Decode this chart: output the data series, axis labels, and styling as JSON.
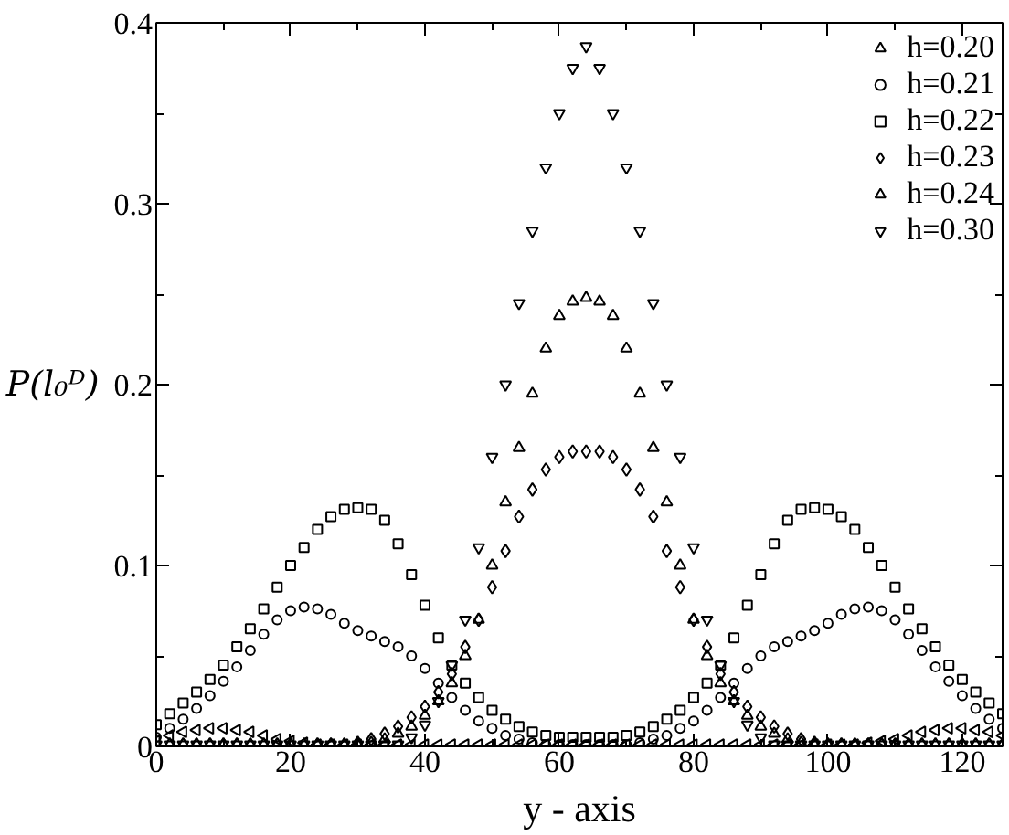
{
  "chart_data": {
    "type": "scatter",
    "xlabel": "y - axis",
    "ylabel": "P(l₀ᴰ)",
    "xlim": [
      0,
      126
    ],
    "ylim": [
      0,
      0.4
    ],
    "xticks": [
      0,
      20,
      40,
      60,
      80,
      100,
      120
    ],
    "yticks": [
      0,
      0.1,
      0.2,
      0.3,
      0.4
    ],
    "grid": false,
    "legend": "top right",
    "x": [
      0,
      2,
      4,
      6,
      8,
      10,
      12,
      14,
      16,
      18,
      20,
      22,
      24,
      26,
      28,
      30,
      32,
      34,
      36,
      38,
      40,
      42,
      44,
      46,
      48,
      50,
      52,
      54,
      56,
      58,
      60,
      62,
      64,
      66,
      68,
      70,
      72,
      74,
      76,
      78,
      80,
      82,
      84,
      86,
      88,
      90,
      92,
      94,
      96,
      98,
      100,
      102,
      104,
      106,
      108,
      110,
      112,
      114,
      116,
      118,
      120,
      122,
      124,
      126
    ],
    "series": [
      {
        "name": "h=0.20",
        "color": "#000000",
        "marker": "triangle-left",
        "values": [
          0.003,
          0.006,
          0.008,
          0.009,
          0.01,
          0.01,
          0.009,
          0.008,
          0.006,
          0.004,
          0.003,
          0.002,
          0.001,
          0.001,
          0.001,
          0.001,
          0.001,
          0.001,
          0.001,
          0.001,
          0.001,
          0.001,
          0.001,
          0.001,
          0.001,
          0.001,
          0.001,
          0.001,
          0.001,
          0.001,
          0.001,
          0.001,
          0.001,
          0.001,
          0.001,
          0.001,
          0.001,
          0.001,
          0.001,
          0.001,
          0.001,
          0.001,
          0.001,
          0.001,
          0.001,
          0.001,
          0.001,
          0.001,
          0.001,
          0.001,
          0.001,
          0.001,
          0.001,
          0.002,
          0.003,
          0.004,
          0.006,
          0.008,
          0.009,
          0.01,
          0.01,
          0.009,
          0.008,
          0.006
        ]
      },
      {
        "name": "h=0.21",
        "color": "#000000",
        "marker": "circle",
        "values": [
          0.005,
          0.01,
          0.015,
          0.021,
          0.028,
          0.036,
          0.044,
          0.053,
          0.062,
          0.07,
          0.075,
          0.077,
          0.076,
          0.073,
          0.068,
          0.064,
          0.061,
          0.058,
          0.055,
          0.05,
          0.043,
          0.035,
          0.027,
          0.02,
          0.014,
          0.01,
          0.006,
          0.004,
          0.002,
          0.001,
          0.001,
          0.001,
          0.001,
          0.001,
          0.001,
          0.001,
          0.002,
          0.004,
          0.006,
          0.01,
          0.014,
          0.02,
          0.027,
          0.035,
          0.043,
          0.05,
          0.055,
          0.058,
          0.061,
          0.064,
          0.068,
          0.073,
          0.076,
          0.077,
          0.075,
          0.07,
          0.062,
          0.053,
          0.044,
          0.036,
          0.028,
          0.021,
          0.015,
          0.01
        ]
      },
      {
        "name": "h=0.22",
        "color": "#000000",
        "marker": "square",
        "values": [
          0.012,
          0.018,
          0.024,
          0.03,
          0.037,
          0.045,
          0.055,
          0.065,
          0.076,
          0.088,
          0.1,
          0.11,
          0.12,
          0.127,
          0.131,
          0.132,
          0.131,
          0.125,
          0.112,
          0.095,
          0.078,
          0.06,
          0.045,
          0.035,
          0.027,
          0.02,
          0.015,
          0.011,
          0.008,
          0.006,
          0.005,
          0.005,
          0.005,
          0.005,
          0.005,
          0.006,
          0.008,
          0.011,
          0.015,
          0.02,
          0.027,
          0.035,
          0.045,
          0.06,
          0.078,
          0.095,
          0.112,
          0.125,
          0.131,
          0.132,
          0.131,
          0.127,
          0.12,
          0.11,
          0.1,
          0.088,
          0.076,
          0.065,
          0.055,
          0.045,
          0.037,
          0.03,
          0.024,
          0.018
        ]
      },
      {
        "name": "h=0.23",
        "color": "#000000",
        "marker": "diamond",
        "values": [
          null,
          0.001,
          0.001,
          0.001,
          0.001,
          0.001,
          0.001,
          0.001,
          0.001,
          0.001,
          0.001,
          0.001,
          0.001,
          0.001,
          0.001,
          0.002,
          0.004,
          0.007,
          0.011,
          0.016,
          0.022,
          0.03,
          0.04,
          0.055,
          0.07,
          0.088,
          0.108,
          0.127,
          0.142,
          0.153,
          0.16,
          0.163,
          0.163,
          0.163,
          0.16,
          0.153,
          0.142,
          0.127,
          0.108,
          0.088,
          0.07,
          0.055,
          0.04,
          0.03,
          0.022,
          0.016,
          0.011,
          0.007,
          0.004,
          0.002,
          0.001,
          0.001,
          0.001,
          0.001,
          0.001,
          0.001,
          0.001,
          0.001,
          0.001,
          0.001,
          0.001,
          0.001,
          0.001,
          0.001
        ]
      },
      {
        "name": "h=0.24",
        "color": "#000000",
        "marker": "triangle",
        "values": [
          null,
          0.001,
          0.001,
          0.001,
          0.001,
          0.001,
          0.001,
          0.001,
          0.001,
          0.001,
          0.001,
          0.001,
          0.001,
          0.001,
          0.001,
          0.001,
          0.002,
          0.004,
          0.007,
          0.011,
          0.017,
          0.025,
          0.035,
          0.05,
          0.07,
          0.1,
          0.135,
          0.165,
          0.195,
          0.22,
          0.238,
          0.246,
          0.248,
          0.246,
          0.238,
          0.22,
          0.195,
          0.165,
          0.135,
          0.1,
          0.07,
          0.05,
          0.035,
          0.025,
          0.017,
          0.011,
          0.007,
          0.004,
          0.002,
          0.001,
          0.001,
          0.001,
          0.001,
          0.001,
          0.001,
          0.001,
          0.001,
          0.001,
          0.001,
          0.001,
          0.001,
          0.001,
          0.001,
          0.001
        ]
      },
      {
        "name": "h=0.30",
        "color": "#000000",
        "marker": "triangle-down",
        "values": [
          0.001,
          0.001,
          0.001,
          0.001,
          0.001,
          0.001,
          0.001,
          0.001,
          0.001,
          0.001,
          0.001,
          0.001,
          0.001,
          0.001,
          0.001,
          0.001,
          0.001,
          0.001,
          0.001,
          0.005,
          0.012,
          0.025,
          0.045,
          0.07,
          0.11,
          0.16,
          0.2,
          0.245,
          0.285,
          0.32,
          0.35,
          0.375,
          0.387,
          0.375,
          0.35,
          0.32,
          0.285,
          0.245,
          0.2,
          0.16,
          0.11,
          0.07,
          0.045,
          0.025,
          0.012,
          0.005,
          0.001,
          0.001,
          0.001,
          0.001,
          0.001,
          0.001,
          0.001,
          0.001,
          0.001,
          0.001,
          0.001,
          0.001,
          0.001,
          0.001,
          0.001,
          0.001,
          0.001,
          0.001
        ]
      }
    ]
  }
}
